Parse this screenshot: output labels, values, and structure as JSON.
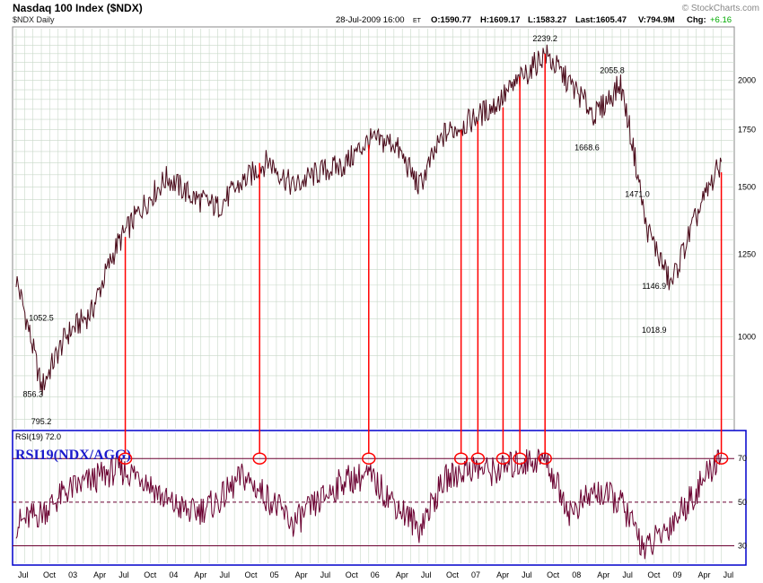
{
  "header": {
    "title": "Nasdaq 100 Index ($NDX)",
    "subtitle": "$NDX Daily",
    "copyright": "© StockCharts.com",
    "date": "28-Jul-2009 16:00",
    "date_suffix": "ET",
    "open": "O:1590.77",
    "high": "H:1609.17",
    "low": "L:1583.27",
    "last": "Last:1605.47",
    "volume": "V:794.9M",
    "change_label": "Chg:",
    "change_value": "+6.16"
  },
  "colors": {
    "price_line": "#4a0a1a",
    "rsi_line": "#6a0030",
    "annotation": "#ff0000",
    "panel_border": "#0000cc",
    "grid": "#c8d8c8",
    "change_positive": "#00aa00",
    "rsi_annotation_text": "#1a1acc"
  },
  "rsi_panel": {
    "label": "RSI(19) 72.0",
    "annotation": "RSI19(NDX/AGG)"
  },
  "chart_data": {
    "type": "line",
    "price": {
      "scale": "log",
      "ylim": [
        780,
        2300
      ],
      "y_ticks": [
        1000,
        1250,
        1500,
        1750,
        2000
      ],
      "x": [
        "2002-07",
        "2002-10",
        "2003-01",
        "2003-04",
        "2003-07",
        "2003-10",
        "2004-01",
        "2004-04",
        "2004-07",
        "2004-10",
        "2005-01",
        "2005-04",
        "2005-07",
        "2005-10",
        "2006-01",
        "2006-04",
        "2006-07",
        "2006-10",
        "2007-01",
        "2007-04",
        "2007-07",
        "2007-10",
        "2008-01",
        "2008-04",
        "2008-07",
        "2008-10",
        "2009-01",
        "2009-04",
        "2009-07"
      ],
      "y": [
        1170,
        870,
        1005,
        1070,
        1280,
        1420,
        1540,
        1460,
        1420,
        1520,
        1610,
        1500,
        1560,
        1590,
        1700,
        1690,
        1500,
        1730,
        1790,
        1870,
        2000,
        2150,
        1980,
        1820,
        1980,
        1350,
        1150,
        1380,
        1605
      ],
      "point_labels": [
        {
          "date": "2002-10",
          "value": 1052.5,
          "text": "1052.5"
        },
        {
          "date": "2002-09",
          "value": 856.3,
          "text": "856.3"
        },
        {
          "date": "2002-10",
          "value": 795.2,
          "text": "795.2"
        },
        {
          "date": "2007-10",
          "value": 2239.2,
          "text": "2239.2"
        },
        {
          "date": "2008-06",
          "value": 2055.8,
          "text": "2055.8"
        },
        {
          "date": "2008-03",
          "value": 1668.6,
          "text": "1668.6"
        },
        {
          "date": "2008-09",
          "value": 1471.0,
          "text": "1471.0"
        },
        {
          "date": "2008-11",
          "value": 1146.9,
          "text": "1146.9"
        },
        {
          "date": "2008-11",
          "value": 1018.9,
          "text": "1018.9"
        }
      ]
    },
    "rsi": {
      "ylim": [
        22,
        82
      ],
      "y_ticks": [
        30,
        50,
        70
      ],
      "levels": [
        70,
        50,
        30
      ],
      "x": [
        "2002-07",
        "2002-10",
        "2003-01",
        "2003-04",
        "2003-07",
        "2003-10",
        "2004-01",
        "2004-04",
        "2004-07",
        "2004-10",
        "2005-01",
        "2005-04",
        "2005-07",
        "2005-10",
        "2006-01",
        "2006-04",
        "2006-07",
        "2006-10",
        "2007-01",
        "2007-04",
        "2007-07",
        "2007-10",
        "2008-01",
        "2008-04",
        "2008-07",
        "2008-10",
        "2009-01",
        "2009-04",
        "2009-07"
      ],
      "y": [
        40,
        45,
        55,
        60,
        65,
        62,
        50,
        45,
        50,
        62,
        52,
        40,
        50,
        60,
        62,
        50,
        38,
        60,
        66,
        64,
        68,
        70,
        45,
        55,
        50,
        28,
        40,
        55,
        72
      ]
    },
    "x_axis_labels": [
      {
        "date": "2002-07",
        "label": "Jul"
      },
      {
        "date": "2002-10",
        "label": "Oct"
      },
      {
        "date": "2003-01",
        "label": "03"
      },
      {
        "date": "2003-04",
        "label": "Apr"
      },
      {
        "date": "2003-07",
        "label": "Jul"
      },
      {
        "date": "2003-10",
        "label": "Oct"
      },
      {
        "date": "2004-01",
        "label": "04"
      },
      {
        "date": "2004-04",
        "label": "Apr"
      },
      {
        "date": "2004-07",
        "label": "Jul"
      },
      {
        "date": "2004-10",
        "label": "Oct"
      },
      {
        "date": "2005-01",
        "label": "05"
      },
      {
        "date": "2005-04",
        "label": "Apr"
      },
      {
        "date": "2005-07",
        "label": "Jul"
      },
      {
        "date": "2005-10",
        "label": "Oct"
      },
      {
        "date": "2006-01",
        "label": "06"
      },
      {
        "date": "2006-04",
        "label": "Apr"
      },
      {
        "date": "2006-07",
        "label": "Jul"
      },
      {
        "date": "2006-10",
        "label": "Oct"
      },
      {
        "date": "2007-01",
        "label": "07"
      },
      {
        "date": "2007-04",
        "label": "Apr"
      },
      {
        "date": "2007-07",
        "label": "Jul"
      },
      {
        "date": "2007-10",
        "label": "Oct"
      },
      {
        "date": "2008-01",
        "label": "08"
      },
      {
        "date": "2008-04",
        "label": "Apr"
      },
      {
        "date": "2008-07",
        "label": "Jul"
      },
      {
        "date": "2008-10",
        "label": "Oct"
      },
      {
        "date": "2009-01",
        "label": "09"
      },
      {
        "date": "2009-04",
        "label": "Apr"
      },
      {
        "date": "2009-07",
        "label": "Jul"
      }
    ],
    "annotations": [
      {
        "date": "2003-08",
        "price": 1310
      },
      {
        "date": "2004-12",
        "price": 1600
      },
      {
        "date": "2006-01",
        "price": 1680
      },
      {
        "date": "2006-12",
        "price": 1750
      },
      {
        "date": "2007-02",
        "price": 1790
      },
      {
        "date": "2007-05",
        "price": 1860
      },
      {
        "date": "2007-07",
        "price": 2020
      },
      {
        "date": "2007-10",
        "price": 2150
      },
      {
        "date": "2009-07",
        "price": 1560
      }
    ]
  }
}
